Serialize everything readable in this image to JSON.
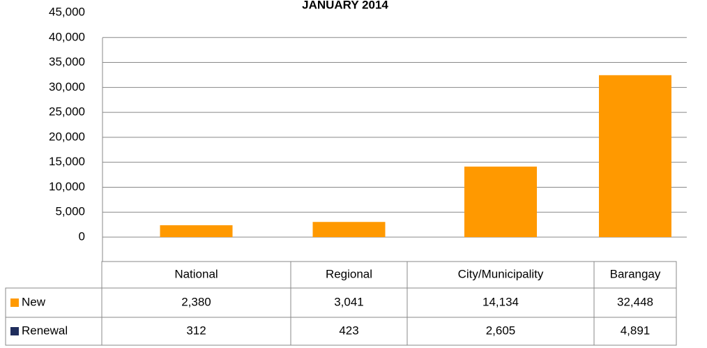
{
  "chart_data": {
    "type": "bar",
    "title": "JANUARY 2014",
    "categories": [
      "National",
      "Regional",
      "City/Municipality",
      "Barangay"
    ],
    "series": [
      {
        "name": "New",
        "color": "#ff9900",
        "values": [
          2380,
          3041,
          14134,
          32448
        ],
        "value_labels": [
          "2,380",
          "3,041",
          "14,134",
          "32,448"
        ]
      },
      {
        "name": "Renewal",
        "color": "#1f2d5c",
        "values": [
          312,
          423,
          2605,
          4891
        ],
        "value_labels": [
          "312",
          "423",
          "2,605",
          "4,891"
        ]
      }
    ],
    "ylim": [
      0,
      45000
    ],
    "yticks": [
      {
        "value": 0,
        "label": "0"
      },
      {
        "value": 5000,
        "label": "5,000"
      },
      {
        "value": 10000,
        "label": "10,000"
      },
      {
        "value": 15000,
        "label": "15,000"
      },
      {
        "value": 20000,
        "label": "20,000"
      },
      {
        "value": 25000,
        "label": "25,000"
      },
      {
        "value": 30000,
        "label": "30,000"
      },
      {
        "value": 35000,
        "label": "35,000"
      },
      {
        "value": 40000,
        "label": "40,000"
      },
      {
        "value": 45000,
        "label": "45,000"
      }
    ],
    "grid": true
  }
}
